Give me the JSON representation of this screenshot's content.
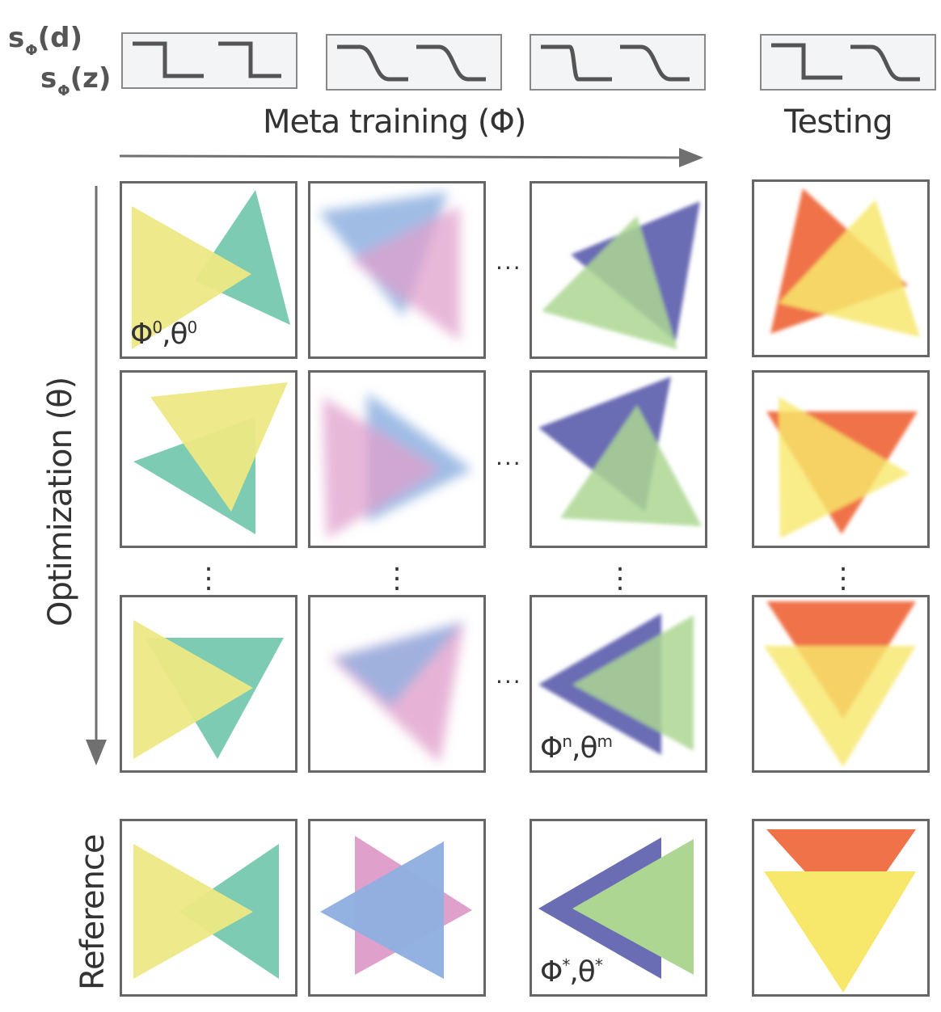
{
  "sfn_labels": {
    "line1": "s",
    "line1_sub": "Φ",
    "line1_arg": "(d)",
    "line2": "s",
    "line2_sub": "Φ",
    "line2_arg": "(z)"
  },
  "headings": {
    "meta_training": "Meta training (Φ)",
    "testing": "Testing",
    "optimization": "Optimization (θ)",
    "reference": "Reference"
  },
  "panel_labels": {
    "start": {
      "main": "Φ",
      "sup1": "0",
      "mid": ",θ",
      "sup2": "0"
    },
    "end": {
      "main": "Φ",
      "sup1": "n",
      "mid": ",θ",
      "sup2": "m"
    },
    "opt": {
      "main": "Φ",
      "sup1": "*",
      "mid": ",θ",
      "sup2": "*"
    }
  },
  "ellipsis": "...",
  "colors": {
    "yellow": "#ede884",
    "teal": "#7ecbb4",
    "blue": "#8fb0e0",
    "pink": "#e0a0cc",
    "indigo": "#6a6cb4",
    "green": "#acd692",
    "orange": "#f07248",
    "gold": "#f7e86c"
  }
}
